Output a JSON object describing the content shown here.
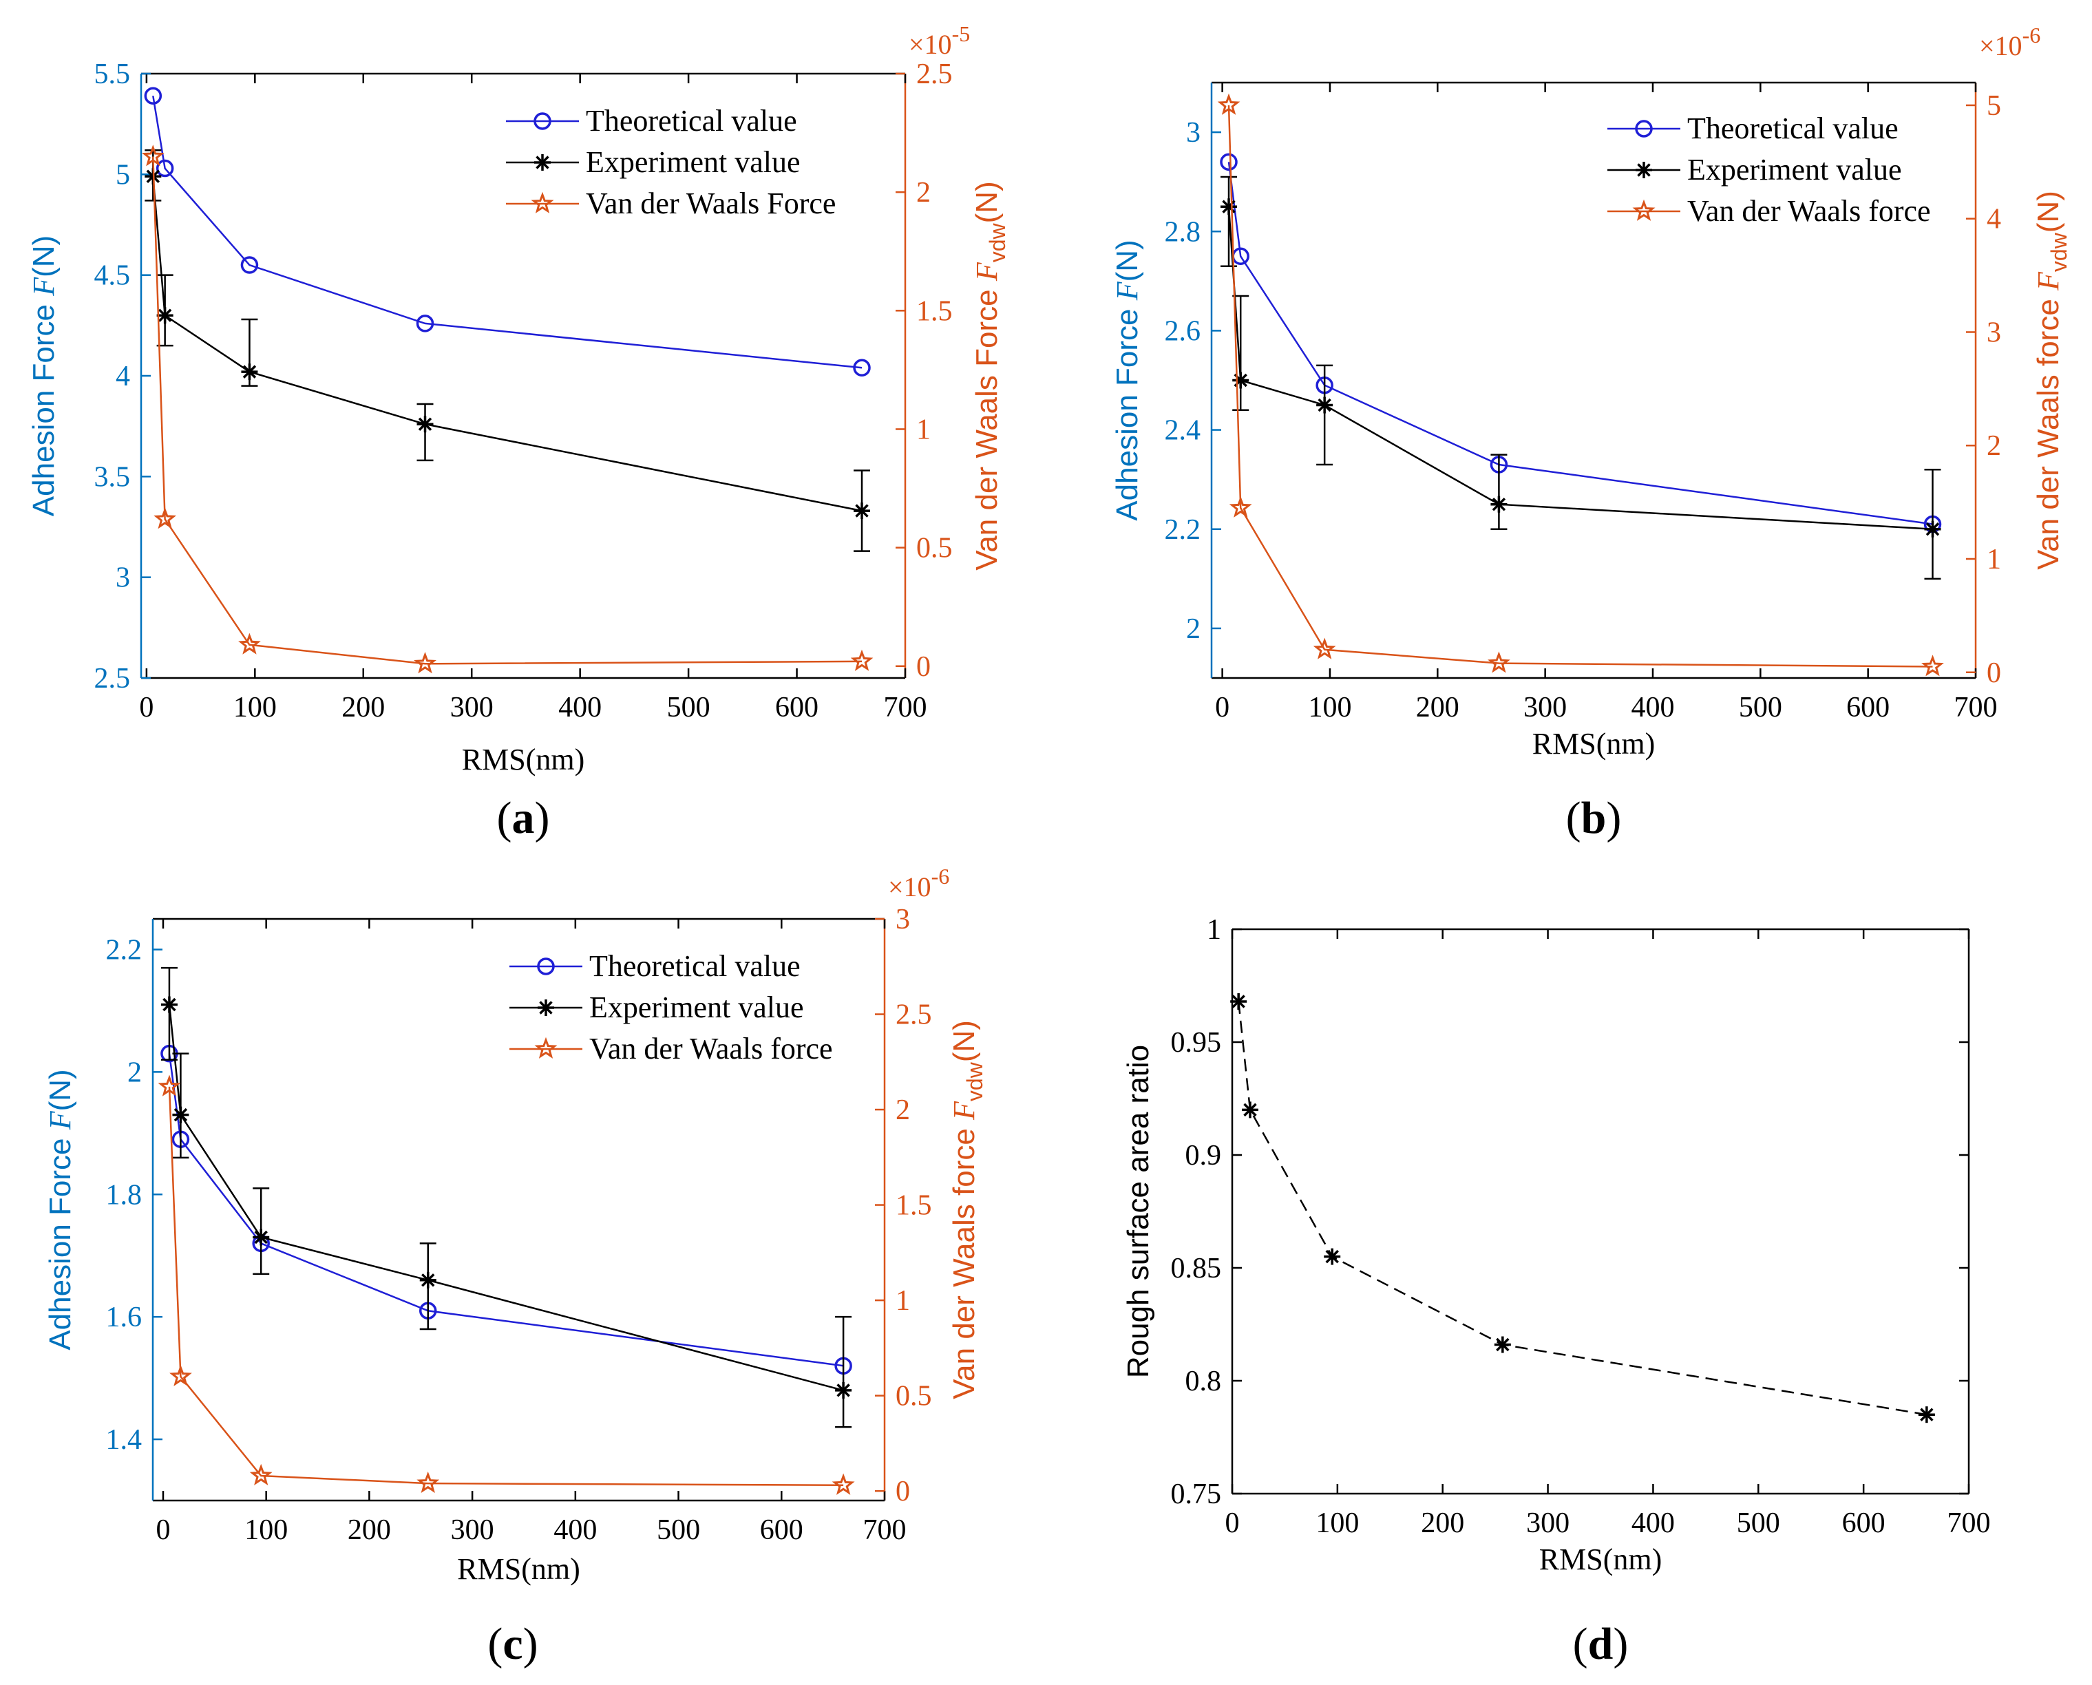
{
  "colors": {
    "theo": "#1f1fd6",
    "exp": "#000000",
    "vdw": "#d95319",
    "left_axis": "#0072bd",
    "right_axis": "#d95319"
  },
  "chart_data": [
    {
      "id": "a",
      "type": "line",
      "panel_label": "a",
      "xlabel": "RMS(nm)",
      "xlim": [
        -5,
        700
      ],
      "xticks": [
        0,
        100,
        200,
        300,
        400,
        500,
        600,
        700
      ],
      "ylabel_main": "Adhesion Force ",
      "ylabel_italic": "F",
      "ylabel_unit": "(N)",
      "ylim": [
        2.5,
        5.5
      ],
      "yticks": [
        2.5,
        3,
        3.5,
        4,
        4.5,
        5,
        5.5
      ],
      "y2label_main": "Van der Waals Force  ",
      "y2label_italic": "F",
      "y2label_sub": "vdw",
      "y2label_unit": "(N)",
      "y2_exponent_base": "×10",
      "y2_exponent_power": "-5",
      "y2lim": [
        -0.05,
        2.5
      ],
      "y2ticks": [
        0,
        0.5,
        1,
        1.5,
        2,
        2.5
      ],
      "series": [
        {
          "name": "Theoretical value",
          "key": "theo",
          "x": [
            6,
            17,
            95,
            257,
            660
          ],
          "values": [
            5.39,
            5.03,
            4.55,
            4.26,
            4.04
          ]
        },
        {
          "name": "Experiment value",
          "key": "exp",
          "x": [
            6,
            17,
            95,
            257,
            660
          ],
          "values": [
            4.99,
            4.3,
            4.02,
            3.76,
            3.33
          ],
          "err_low": [
            4.87,
            4.15,
            3.95,
            3.58,
            3.13
          ],
          "err_high": [
            5.12,
            4.5,
            4.28,
            3.86,
            3.53
          ]
        },
        {
          "name": "Van der Waals Force",
          "key": "vdw",
          "axis": "right",
          "x": [
            6,
            17,
            95,
            257,
            660
          ],
          "values": [
            2.15,
            0.62,
            0.09,
            0.01,
            0.02
          ]
        }
      ]
    },
    {
      "id": "b",
      "type": "line",
      "panel_label": "b",
      "xlabel": "RMS(nm)",
      "xlim": [
        -10,
        700
      ],
      "xticks": [
        0,
        100,
        200,
        300,
        400,
        500,
        600,
        700
      ],
      "ylabel_main": "Adhesion Force ",
      "ylabel_italic": "F",
      "ylabel_unit": "(N)",
      "ylim": [
        1.9,
        3.1
      ],
      "yticks": [
        2,
        2.2,
        2.4,
        2.6,
        2.8,
        3
      ],
      "y2label_main": "Van der Waals force  ",
      "y2label_italic": "F",
      "y2label_sub": "vdw",
      "y2label_unit": "(N)",
      "y2_exponent_base": "×10",
      "y2_exponent_power": "-6",
      "y2lim": [
        -0.05,
        5.2
      ],
      "y2ticks": [
        0,
        1,
        2,
        3,
        4,
        5
      ],
      "series": [
        {
          "name": "Theoretical value",
          "key": "theo",
          "x": [
            6,
            17,
            95,
            257,
            660
          ],
          "values": [
            2.94,
            2.75,
            2.49,
            2.33,
            2.21
          ]
        },
        {
          "name": "Experiment value",
          "key": "exp",
          "x": [
            6,
            17,
            95,
            257,
            660
          ],
          "values": [
            2.85,
            2.5,
            2.45,
            2.25,
            2.2
          ],
          "err_low": [
            2.73,
            2.44,
            2.33,
            2.2,
            2.1
          ],
          "err_high": [
            2.91,
            2.67,
            2.53,
            2.35,
            2.32
          ]
        },
        {
          "name": "Van der Waals force",
          "key": "vdw",
          "axis": "right",
          "x": [
            6,
            17,
            95,
            257,
            660
          ],
          "values": [
            5.0,
            1.45,
            0.2,
            0.08,
            0.05
          ]
        }
      ]
    },
    {
      "id": "c",
      "type": "line",
      "panel_label": "c",
      "xlabel": "RMS(nm)",
      "xlim": [
        -10,
        700
      ],
      "xticks": [
        0,
        100,
        200,
        300,
        400,
        500,
        600,
        700
      ],
      "ylabel_main": "Adhesion Force ",
      "ylabel_italic": "F",
      "ylabel_unit": "(N)",
      "ylim": [
        1.3,
        2.25
      ],
      "yticks": [
        1.4,
        1.6,
        1.8,
        2,
        2.2
      ],
      "y2label_main": "Van der Waals force  ",
      "y2label_italic": "F",
      "y2label_sub": "vdw",
      "y2label_unit": "(N)",
      "y2_exponent_base": "×10",
      "y2_exponent_power": "-6",
      "y2lim": [
        -0.05,
        3.0
      ],
      "y2ticks": [
        0,
        0.5,
        1,
        1.5,
        2,
        2.5,
        3
      ],
      "series": [
        {
          "name": "Theoretical value",
          "key": "theo",
          "x": [
            6,
            17,
            95,
            257,
            660
          ],
          "values": [
            2.03,
            1.89,
            1.72,
            1.61,
            1.52
          ]
        },
        {
          "name": "Experiment value",
          "key": "exp",
          "x": [
            6,
            17,
            95,
            257,
            660
          ],
          "values": [
            2.11,
            1.93,
            1.73,
            1.66,
            1.48
          ],
          "err_low": [
            2.02,
            1.86,
            1.67,
            1.58,
            1.42
          ],
          "err_high": [
            2.17,
            2.03,
            1.81,
            1.72,
            1.6
          ]
        },
        {
          "name": "Van der Waals force",
          "key": "vdw",
          "axis": "right",
          "x": [
            6,
            17,
            95,
            257,
            660
          ],
          "values": [
            2.12,
            0.6,
            0.08,
            0.04,
            0.03
          ]
        }
      ]
    },
    {
      "id": "d",
      "type": "line",
      "panel_label": "d",
      "xlabel": "RMS(nm)",
      "xlim": [
        0,
        700
      ],
      "xticks": [
        0,
        100,
        200,
        300,
        400,
        500,
        600,
        700
      ],
      "ylabel_main": "Rough surface area ratio",
      "ylim": [
        0.75,
        1.0
      ],
      "yticks": [
        0.75,
        0.8,
        0.85,
        0.9,
        0.95,
        1
      ],
      "series": [
        {
          "name": "Rough surface area ratio",
          "key": "exp",
          "style": "dashed",
          "x": [
            6,
            17,
            95,
            257,
            660
          ],
          "values": [
            0.968,
            0.92,
            0.855,
            0.816,
            0.785
          ]
        }
      ]
    }
  ]
}
